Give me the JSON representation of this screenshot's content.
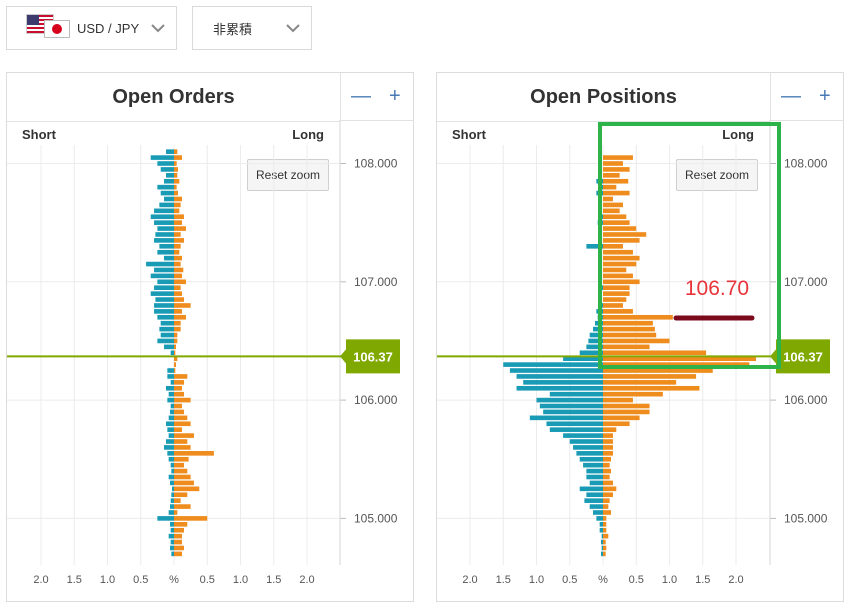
{
  "selectors": {
    "pair": {
      "label": "USD / JPY"
    },
    "mode": {
      "label": "非累積"
    }
  },
  "colors": {
    "short": "#1a9bb5",
    "long": "#ee8c1d",
    "price": "#7fa800",
    "annotation_text": "#e8333a",
    "annotation_line": "#7a0a1c",
    "highlight": "#2db34a"
  },
  "chart_data": [
    {
      "type": "bar",
      "title": "Open Orders",
      "short_label": "Short",
      "long_label": "Long",
      "reset_label": "Reset zoom",
      "x_ticks": [
        "2.0",
        "1.5",
        "1.0",
        "0.5",
        "%",
        "0.5",
        "1.0",
        "1.5",
        "2.0"
      ],
      "y_ticks": [
        "108.000",
        "107.000",
        "106.000",
        "105.000"
      ],
      "current_price": "106.37",
      "bar_step": 0.05,
      "ylim": [
        104.66,
        108.14
      ],
      "xlim": [
        -2.0,
        2.0
      ],
      "series": [
        {
          "name": "Short",
          "type": "bar",
          "direction": "left",
          "x": [
            108.1,
            108.05,
            108.0,
            107.95,
            107.9,
            107.85,
            107.8,
            107.75,
            107.7,
            107.65,
            107.6,
            107.55,
            107.5,
            107.45,
            107.4,
            107.35,
            107.3,
            107.25,
            107.2,
            107.15,
            107.1,
            107.05,
            107.0,
            106.95,
            106.9,
            106.85,
            106.8,
            106.75,
            106.7,
            106.65,
            106.6,
            106.55,
            106.5,
            106.45,
            106.4,
            106.25,
            106.2,
            106.15,
            106.1,
            106.05,
            106.0,
            105.95,
            105.9,
            105.85,
            105.8,
            105.75,
            105.7,
            105.65,
            105.6,
            105.55,
            105.5,
            105.45,
            105.4,
            105.35,
            105.3,
            105.25,
            105.2,
            105.15,
            105.1,
            105.05,
            105.0,
            104.95,
            104.9,
            104.85,
            104.8,
            104.75,
            104.7
          ],
          "values": [
            0.12,
            0.35,
            0.25,
            0.2,
            0.12,
            0.15,
            0.25,
            0.2,
            0.15,
            0.22,
            0.3,
            0.35,
            0.3,
            0.25,
            0.28,
            0.3,
            0.22,
            0.25,
            0.15,
            0.42,
            0.3,
            0.35,
            0.25,
            0.3,
            0.35,
            0.28,
            0.3,
            0.3,
            0.25,
            0.2,
            0.22,
            0.2,
            0.25,
            0.15,
            0.05,
            0.1,
            0.1,
            0.05,
            0.12,
            0.08,
            0.1,
            0.05,
            0.06,
            0.08,
            0.12,
            0.1,
            0.08,
            0.12,
            0.15,
            0.1,
            0.08,
            0.05,
            0.04,
            0.08,
            0.06,
            0.03,
            0.04,
            0.05,
            0.06,
            0.08,
            0.25,
            0.06,
            0.05,
            0.08,
            0.05,
            0.06,
            0.04
          ]
        },
        {
          "name": "Long",
          "type": "bar",
          "direction": "right",
          "x": [
            108.1,
            108.05,
            108.0,
            107.95,
            107.9,
            107.85,
            107.8,
            107.75,
            107.7,
            107.65,
            107.6,
            107.55,
            107.5,
            107.45,
            107.4,
            107.35,
            107.3,
            107.25,
            107.2,
            107.15,
            107.1,
            107.05,
            107.0,
            106.95,
            106.9,
            106.85,
            106.8,
            106.75,
            106.7,
            106.65,
            106.6,
            106.55,
            106.5,
            106.45,
            106.4,
            106.35,
            106.3,
            106.25,
            106.2,
            106.15,
            106.1,
            106.05,
            106.0,
            105.95,
            105.9,
            105.85,
            105.8,
            105.75,
            105.7,
            105.65,
            105.6,
            105.55,
            105.5,
            105.45,
            105.4,
            105.35,
            105.3,
            105.25,
            105.2,
            105.15,
            105.1,
            105.05,
            105.0,
            104.95,
            104.9,
            104.85,
            104.8,
            104.75,
            104.7
          ],
          "values": [
            0.05,
            0.12,
            0.04,
            0.06,
            0.05,
            0.08,
            0.04,
            0.06,
            0.12,
            0.1,
            0.08,
            0.15,
            0.12,
            0.18,
            0.1,
            0.15,
            0.1,
            0.08,
            0.12,
            0.1,
            0.14,
            0.12,
            0.18,
            0.1,
            0.12,
            0.15,
            0.25,
            0.12,
            0.18,
            0.1,
            0.1,
            0.05,
            0.05,
            0.03,
            0.02,
            0.05,
            0.03,
            0.02,
            0.2,
            0.15,
            0.12,
            0.15,
            0.25,
            0.12,
            0.15,
            0.2,
            0.25,
            0.12,
            0.3,
            0.2,
            0.25,
            0.6,
            0.22,
            0.15,
            0.2,
            0.25,
            0.3,
            0.38,
            0.2,
            0.1,
            0.25,
            0.05,
            0.5,
            0.2,
            0.15,
            0.12,
            0.12,
            0.15,
            0.12
          ]
        }
      ]
    },
    {
      "type": "bar",
      "title": "Open Positions",
      "short_label": "Short",
      "long_label": "Long",
      "reset_label": "Reset zoom",
      "x_ticks": [
        "2.0",
        "1.5",
        "1.0",
        "0.5",
        "%",
        "0.5",
        "1.0",
        "1.5",
        "2.0"
      ],
      "y_ticks": [
        "108.000",
        "107.000",
        "106.000",
        "105.000"
      ],
      "current_price": "106.37",
      "annotation": "106.70",
      "bar_step": 0.05,
      "ylim": [
        104.66,
        108.14
      ],
      "xlim": [
        -2.0,
        2.0
      ],
      "series": [
        {
          "name": "Short",
          "type": "bar",
          "direction": "left",
          "x": [
            107.85,
            107.8,
            107.75,
            107.55,
            107.5,
            107.3,
            106.95,
            106.8,
            106.75,
            106.7,
            106.65,
            106.6,
            106.55,
            106.5,
            106.45,
            106.4,
            106.35,
            106.3,
            106.25,
            106.2,
            106.15,
            106.1,
            106.05,
            106.0,
            105.95,
            105.9,
            105.85,
            105.8,
            105.75,
            105.7,
            105.65,
            105.6,
            105.55,
            105.5,
            105.45,
            105.4,
            105.35,
            105.3,
            105.25,
            105.2,
            105.15,
            105.1,
            105.05,
            105.0,
            104.95,
            104.9,
            104.85,
            104.8,
            104.75,
            104.7
          ],
          "values": [
            0.1,
            0.05,
            0.1,
            0.05,
            0.08,
            0.25,
            0.05,
            0.05,
            0.1,
            0.08,
            0.12,
            0.15,
            0.2,
            0.22,
            0.25,
            0.35,
            0.6,
            1.5,
            1.4,
            1.3,
            1.2,
            1.3,
            0.8,
            1.0,
            0.95,
            0.9,
            1.1,
            0.85,
            0.8,
            0.6,
            0.5,
            0.45,
            0.4,
            0.35,
            0.3,
            0.25,
            0.25,
            0.2,
            0.35,
            0.25,
            0.28,
            0.2,
            0.15,
            0.1,
            0.05,
            0.05,
            0.02,
            0.03,
            0.02,
            0.03
          ]
        },
        {
          "name": "Long",
          "type": "bar",
          "direction": "right",
          "x": [
            108.05,
            108.0,
            107.95,
            107.9,
            107.85,
            107.8,
            107.75,
            107.7,
            107.65,
            107.6,
            107.55,
            107.5,
            107.45,
            107.4,
            107.35,
            107.3,
            107.25,
            107.2,
            107.15,
            107.1,
            107.05,
            107.0,
            106.95,
            106.9,
            106.85,
            106.8,
            106.75,
            106.7,
            106.65,
            106.6,
            106.55,
            106.5,
            106.45,
            106.4,
            106.35,
            106.3,
            106.25,
            106.2,
            106.15,
            106.1,
            106.05,
            106.0,
            105.95,
            105.9,
            105.85,
            105.8,
            105.75,
            105.7,
            105.65,
            105.6,
            105.55,
            105.5,
            105.45,
            105.4,
            105.35,
            105.3,
            105.25,
            105.2,
            105.15,
            105.1,
            105.05,
            105.0,
            104.95,
            104.9,
            104.85,
            104.8,
            104.75,
            104.7
          ],
          "values": [
            0.45,
            0.3,
            0.4,
            0.25,
            0.38,
            0.2,
            0.4,
            0.15,
            0.3,
            0.25,
            0.35,
            0.4,
            0.5,
            0.65,
            0.55,
            0.3,
            0.45,
            0.55,
            0.5,
            0.35,
            0.45,
            0.55,
            0.4,
            0.4,
            0.35,
            0.3,
            0.45,
            1.05,
            0.75,
            0.78,
            0.8,
            1.0,
            0.7,
            1.55,
            2.3,
            2.2,
            1.65,
            1.4,
            1.1,
            1.45,
            0.9,
            0.45,
            0.7,
            0.7,
            0.55,
            0.4,
            0.2,
            0.15,
            0.15,
            0.15,
            0.15,
            0.12,
            0.1,
            0.12,
            0.1,
            0.15,
            0.2,
            0.15,
            0.1,
            0.08,
            0.12,
            0.05,
            0.05,
            0.05,
            0.08,
            0.04,
            0.05,
            0.04
          ]
        }
      ]
    }
  ]
}
